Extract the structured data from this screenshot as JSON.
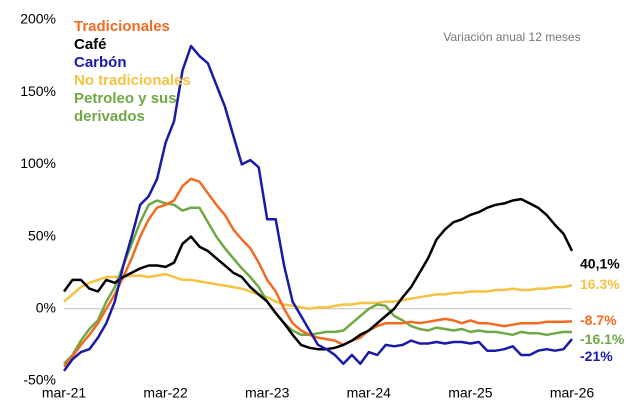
{
  "chart_data": {
    "type": "line",
    "annotation": "Variación anual 12 meses",
    "categories": [
      "mar-21",
      null,
      null,
      null,
      null,
      null,
      null,
      null,
      null,
      null,
      null,
      null,
      "mar-22",
      null,
      null,
      null,
      null,
      null,
      null,
      null,
      null,
      null,
      null,
      null,
      "mar-23",
      null,
      null,
      null,
      null,
      null,
      null,
      null,
      null,
      null,
      null,
      null,
      "mar-24",
      null,
      null,
      null,
      null,
      null,
      null,
      null,
      null,
      null,
      null,
      null,
      "mar-25",
      null,
      null,
      null,
      null,
      null,
      null,
      null,
      null,
      null,
      null,
      null,
      "mar-26"
    ],
    "ylim": [
      -50,
      200
    ],
    "yticks": [
      {
        "value": -50,
        "label": "-50%"
      },
      {
        "value": 0,
        "label": "0%"
      },
      {
        "value": 50,
        "label": "50%"
      },
      {
        "value": 100,
        "label": "100%"
      },
      {
        "value": 150,
        "label": "150%"
      },
      {
        "value": 200,
        "label": "200%"
      }
    ],
    "legend": "top-left",
    "series": [
      {
        "name": "Tradicionales",
        "color": "#f26b21",
        "values": [
          -40,
          -33,
          -25,
          -18,
          -10,
          0,
          10,
          22,
          35,
          50,
          62,
          70,
          72,
          75,
          85,
          90,
          88,
          80,
          72,
          65,
          55,
          48,
          42,
          32,
          20,
          12,
          0,
          -10,
          -15,
          -18,
          -20,
          -21,
          -22,
          -25,
          -22,
          -20,
          -15,
          -12,
          -10,
          -10,
          -10,
          -9,
          -10,
          -9,
          -8,
          -7,
          -8,
          -10,
          -8,
          -10,
          -10,
          -11,
          -12,
          -11,
          -10,
          -10,
          -10,
          -9,
          -9,
          -9,
          -8.7
        ],
        "value_labels": [
          null,
          null,
          null,
          null,
          null,
          null,
          null,
          null,
          null,
          null,
          null,
          null,
          null,
          null,
          null,
          null,
          null,
          null,
          null,
          null,
          null,
          null,
          null,
          null,
          null,
          null,
          null,
          null,
          null,
          null,
          null,
          null,
          null,
          null,
          null,
          null,
          null,
          null,
          null,
          null,
          null,
          null,
          null,
          null,
          null,
          null,
          null,
          null,
          null,
          null,
          null,
          null,
          null,
          null,
          null,
          null,
          null,
          null,
          null,
          null,
          "-8.7%"
        ]
      },
      {
        "name": "Café",
        "color": "#000000",
        "values": [
          12,
          20,
          20,
          14,
          12,
          20,
          18,
          22,
          25,
          28,
          30,
          30,
          29,
          32,
          45,
          50,
          43,
          40,
          35,
          30,
          25,
          22,
          15,
          10,
          5,
          -3,
          -10,
          -18,
          -25,
          -27,
          -28,
          -28,
          -27,
          -25,
          -22,
          -18,
          -15,
          -10,
          -5,
          0,
          8,
          15,
          25,
          35,
          48,
          55,
          60,
          62,
          65,
          67,
          70,
          72,
          73,
          75,
          76,
          73,
          70,
          65,
          58,
          52,
          40.1
        ],
        "value_labels": [
          null,
          null,
          null,
          null,
          null,
          null,
          null,
          null,
          null,
          null,
          null,
          null,
          null,
          null,
          null,
          null,
          null,
          null,
          null,
          null,
          null,
          null,
          null,
          null,
          null,
          null,
          null,
          null,
          null,
          null,
          null,
          null,
          null,
          null,
          null,
          null,
          null,
          null,
          null,
          null,
          null,
          null,
          null,
          null,
          null,
          null,
          null,
          null,
          null,
          null,
          null,
          null,
          null,
          null,
          null,
          null,
          null,
          null,
          null,
          null,
          "40,1%"
        ]
      },
      {
        "name": "Carbón",
        "color": "#1a1aa8",
        "values": [
          -43,
          -35,
          -30,
          -28,
          -20,
          -10,
          5,
          30,
          50,
          72,
          78,
          90,
          115,
          130,
          165,
          182,
          175,
          170,
          155,
          140,
          120,
          100,
          103,
          98,
          62,
          62,
          30,
          5,
          -5,
          -15,
          -25,
          -28,
          -32,
          -38,
          -32,
          -38,
          -30,
          -32,
          -25,
          -26,
          -25,
          -22,
          -24,
          -24,
          -23,
          -24,
          -23,
          -23,
          -24,
          -23,
          -29,
          -29,
          -28,
          -26,
          -32,
          -32,
          -29,
          -28,
          -29,
          -28,
          -21
        ],
        "value_labels": [
          null,
          null,
          null,
          null,
          null,
          null,
          null,
          null,
          null,
          null,
          null,
          null,
          null,
          null,
          null,
          null,
          null,
          null,
          null,
          null,
          null,
          null,
          null,
          null,
          null,
          null,
          null,
          null,
          null,
          null,
          null,
          null,
          null,
          null,
          null,
          null,
          null,
          null,
          null,
          null,
          null,
          null,
          null,
          null,
          null,
          null,
          null,
          null,
          null,
          null,
          null,
          null,
          null,
          null,
          null,
          null,
          null,
          null,
          null,
          null,
          "-21%"
        ]
      },
      {
        "name": "No tradicionales",
        "color": "#f5c242",
        "values": [
          5,
          10,
          15,
          18,
          20,
          22,
          22,
          22,
          23,
          23,
          22,
          23,
          24,
          22,
          20,
          20,
          19,
          18,
          17,
          16,
          15,
          14,
          12,
          10,
          8,
          5,
          3,
          2,
          1,
          0,
          1,
          1,
          2,
          3,
          3,
          4,
          4,
          4,
          5,
          5,
          6,
          7,
          8,
          9,
          10,
          10,
          11,
          11,
          12,
          12,
          12,
          13,
          13,
          14,
          13,
          13,
          14,
          14,
          15,
          15,
          16.3
        ],
        "value_labels": [
          null,
          null,
          null,
          null,
          null,
          null,
          null,
          null,
          null,
          null,
          null,
          null,
          null,
          null,
          null,
          null,
          null,
          null,
          null,
          null,
          null,
          null,
          null,
          null,
          null,
          null,
          null,
          null,
          null,
          null,
          null,
          null,
          null,
          null,
          null,
          null,
          null,
          null,
          null,
          null,
          null,
          null,
          null,
          null,
          null,
          null,
          null,
          null,
          null,
          null,
          null,
          null,
          null,
          null,
          null,
          null,
          null,
          null,
          null,
          null,
          "16.3%"
        ]
      },
      {
        "name": "Petroleo y sus derivados",
        "color": "#70a845",
        "values": [
          -38,
          -32,
          -22,
          -14,
          -8,
          5,
          15,
          30,
          45,
          60,
          72,
          75,
          73,
          72,
          68,
          70,
          70,
          60,
          50,
          42,
          35,
          28,
          22,
          15,
          5,
          -3,
          -10,
          -15,
          -18,
          -18,
          -17,
          -16,
          -16,
          -15,
          -10,
          -5,
          0,
          3,
          2,
          -5,
          -8,
          -12,
          -14,
          -15,
          -13,
          -14,
          -15,
          -14,
          -16,
          -15,
          -16,
          -16,
          -17,
          -18,
          -16,
          -17,
          -17,
          -18,
          -17,
          -16,
          -16.1
        ],
        "value_labels": [
          null,
          null,
          null,
          null,
          null,
          null,
          null,
          null,
          null,
          null,
          null,
          null,
          null,
          null,
          null,
          null,
          null,
          null,
          null,
          null,
          null,
          null,
          null,
          null,
          null,
          null,
          null,
          null,
          null,
          null,
          null,
          null,
          null,
          null,
          null,
          null,
          null,
          null,
          null,
          null,
          null,
          null,
          null,
          null,
          null,
          null,
          null,
          null,
          null,
          null,
          null,
          null,
          null,
          null,
          null,
          null,
          null,
          null,
          null,
          null,
          "-16.1%"
        ]
      }
    ]
  }
}
